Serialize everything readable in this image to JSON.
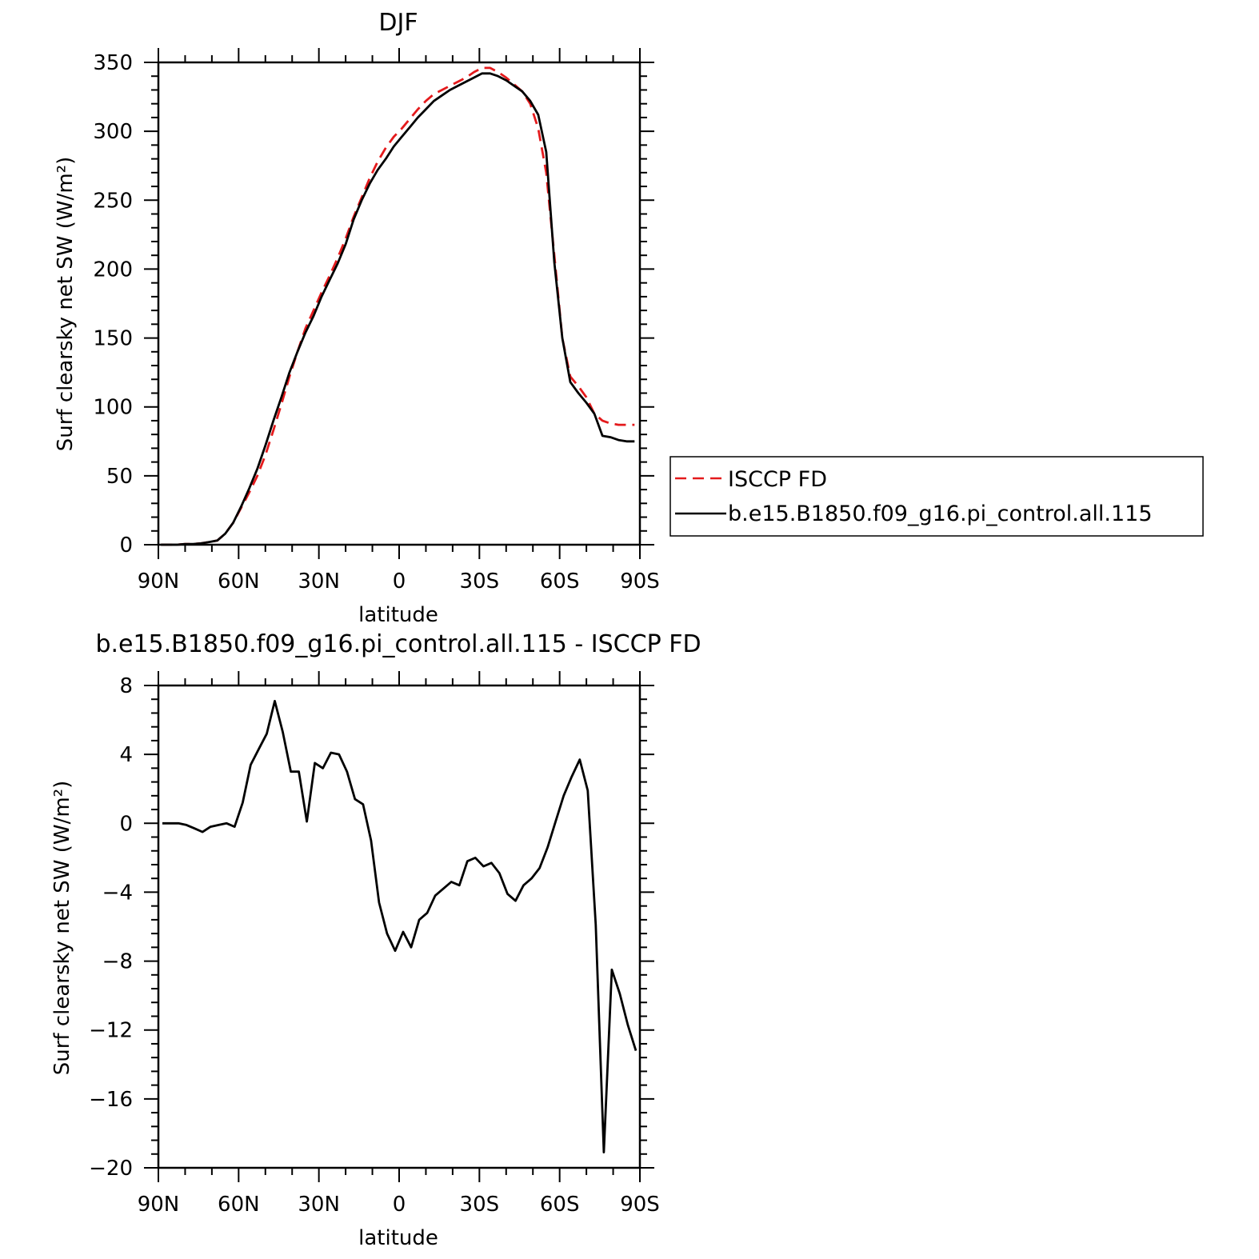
{
  "chart_data": [
    {
      "type": "line",
      "title": "DJF",
      "xlabel": "latitude",
      "ylabel": "Surf clearsky net SW (W/m²)",
      "x_ticks": [
        -90,
        -60,
        -30,
        0,
        30,
        60,
        90
      ],
      "x_tick_labels": [
        "90N",
        "60N",
        "30N",
        "0",
        "30S",
        "60S",
        "90S"
      ],
      "xlim": [
        -90,
        90
      ],
      "ylim": [
        0,
        350
      ],
      "y_ticks": [
        0,
        50,
        100,
        150,
        200,
        250,
        300,
        350
      ],
      "y_tick_labels": [
        "0",
        "50",
        "100",
        "150",
        "200",
        "250",
        "300",
        "350"
      ],
      "legend_position": "right",
      "series": [
        {
          "name": "ISCCP FD",
          "color": "#e41a1c",
          "dash": "dashed",
          "x": [
            -89,
            -86,
            -83,
            -80,
            -77,
            -74,
            -71,
            -68,
            -65,
            -62,
            -59,
            -56,
            -53,
            -50,
            -47,
            -44,
            -41,
            -38,
            -35,
            -32,
            -29,
            -26,
            -23,
            -20,
            -17,
            -14,
            -11,
            -8,
            -5,
            -2,
            1,
            4,
            7,
            10,
            13,
            16,
            19,
            22,
            25,
            28,
            31,
            34,
            37,
            40,
            43,
            46,
            49,
            52,
            55,
            58,
            61,
            64,
            67,
            70,
            73,
            76,
            79,
            82,
            85,
            88
          ],
          "y": [
            0,
            0,
            0,
            0.5,
            0.5,
            1,
            2,
            3,
            8,
            16,
            27,
            38,
            50,
            65,
            83,
            102,
            122,
            140,
            157,
            170,
            183,
            195,
            208,
            222,
            238,
            252,
            266,
            278,
            288,
            296,
            302,
            309,
            316,
            322,
            327,
            330,
            333,
            336,
            339,
            343,
            346,
            346,
            343,
            339,
            334,
            329,
            320,
            302,
            270,
            210,
            150,
            122,
            115,
            107,
            95,
            90,
            88,
            87,
            87,
            87
          ]
        },
        {
          "name": "b.e15.B1850.f09_g16.pi_control.all.115",
          "color": "#000000",
          "dash": "solid",
          "x": [
            -89,
            -86,
            -83,
            -80,
            -77,
            -74,
            -71,
            -68,
            -65,
            -62,
            -59,
            -56,
            -53,
            -50,
            -47,
            -44,
            -41,
            -38,
            -35,
            -32,
            -29,
            -26,
            -23,
            -20,
            -17,
            -14,
            -11,
            -8,
            -5,
            -2,
            1,
            4,
            7,
            10,
            13,
            16,
            19,
            22,
            25,
            28,
            31,
            34,
            37,
            40,
            43,
            46,
            49,
            52,
            55,
            58,
            61,
            64,
            67,
            70,
            73,
            76,
            79,
            82,
            85,
            88
          ],
          "y": [
            0,
            0,
            0,
            0.5,
            0.5,
            1,
            2,
            3,
            8,
            16,
            28,
            41,
            55,
            72,
            90,
            107,
            125,
            140,
            154,
            166,
            180,
            192,
            204,
            218,
            236,
            250,
            262,
            272,
            280,
            289,
            296,
            303,
            310,
            316,
            322,
            326,
            330,
            333,
            336,
            339,
            342,
            342,
            340,
            337,
            333,
            329,
            322,
            312,
            285,
            205,
            150,
            118,
            110,
            103,
            95,
            79,
            78,
            76,
            75,
            75
          ]
        }
      ]
    },
    {
      "type": "line",
      "title": "b.e15.B1850.f09_g16.pi_control.all.115 - ISCCP FD",
      "xlabel": "latitude",
      "ylabel": "Surf clearsky net SW (W/m²)",
      "x_ticks": [
        -90,
        -60,
        -30,
        0,
        30,
        60,
        90
      ],
      "x_tick_labels": [
        "90N",
        "60N",
        "30N",
        "0",
        "30S",
        "60S",
        "90S"
      ],
      "xlim": [
        -90,
        90
      ],
      "ylim": [
        -20,
        8
      ],
      "y_ticks": [
        -20,
        -16,
        -12,
        -8,
        -4,
        0,
        4,
        8
      ],
      "y_tick_labels": [
        "−20",
        "−16",
        "−12",
        "−8",
        "−4",
        "0",
        "4",
        "8"
      ],
      "series": [
        {
          "color": "#000000",
          "dash": "solid",
          "x": [
            -88.5,
            -85.5,
            -82.5,
            -79.5,
            -76.5,
            -73.5,
            -70.5,
            -67.5,
            -64.5,
            -61.5,
            -58.5,
            -55.5,
            -52.5,
            -49.5,
            -46.5,
            -43.5,
            -40.5,
            -37.5,
            -34.5,
            -31.5,
            -28.5,
            -25.5,
            -22.5,
            -19.5,
            -16.5,
            -13.5,
            -10.5,
            -7.5,
            -4.5,
            -1.5,
            1.5,
            4.5,
            7.5,
            10.5,
            13.5,
            16.5,
            19.5,
            22.5,
            25.5,
            28.5,
            31.5,
            34.5,
            37.5,
            40.5,
            43.5,
            46.5,
            49.5,
            52.5,
            55.5,
            58.5,
            61.5,
            64.5,
            67.5,
            70.5,
            73.5,
            76.5,
            79.5,
            82.5,
            85.5,
            88.5
          ],
          "y": [
            0,
            0,
            0,
            -0.1,
            -0.3,
            -0.5,
            -0.2,
            -0.1,
            0,
            -0.2,
            1.2,
            3.4,
            4.3,
            5.2,
            7.1,
            5.3,
            3.0,
            3.0,
            0.1,
            3.5,
            3.2,
            4.1,
            4.0,
            3.0,
            1.4,
            1.1,
            -1.0,
            -4.6,
            -6.4,
            -7.4,
            -6.3,
            -7.2,
            -5.6,
            -5.2,
            -4.2,
            -3.8,
            -3.4,
            -3.6,
            -2.2,
            -2.0,
            -2.5,
            -2.3,
            -2.9,
            -4.1,
            -4.5,
            -3.6,
            -3.2,
            -2.6,
            -1.4,
            0.1,
            1.6,
            2.7,
            3.7,
            1.9,
            -5.9,
            -19.1,
            -8.5,
            -9.9,
            -11.7,
            -13.2
          ]
        }
      ]
    }
  ]
}
